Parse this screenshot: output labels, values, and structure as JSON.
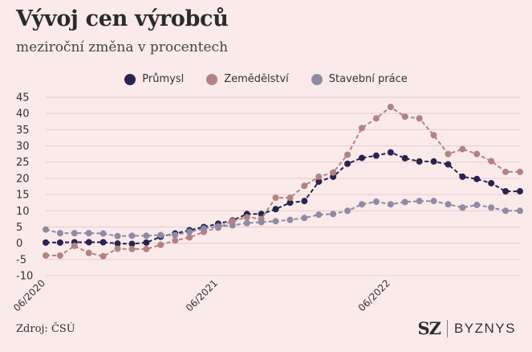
{
  "header": {
    "title": "Vývoj cen výrobců",
    "subtitle": "meziroční změna v procentech"
  },
  "footer": {
    "source": "Zdroj: ČSÚ",
    "brand_mark": "SZ",
    "brand_name": "BYZNYS"
  },
  "chart_data": {
    "type": "line",
    "x": [
      "2020-06",
      "2020-07",
      "2020-08",
      "2020-09",
      "2020-10",
      "2020-11",
      "2020-12",
      "2021-01",
      "2021-02",
      "2021-03",
      "2021-04",
      "2021-05",
      "2021-06",
      "2021-07",
      "2021-08",
      "2021-09",
      "2021-10",
      "2021-11",
      "2021-12",
      "2022-01",
      "2022-02",
      "2022-03",
      "2022-04",
      "2022-05",
      "2022-06",
      "2022-07",
      "2022-08",
      "2022-09",
      "2022-10",
      "2022-11",
      "2022-12",
      "2023-01",
      "2023-02",
      "2023-03"
    ],
    "x_tick_labels": [
      {
        "x": "2020-06",
        "label": "06/2020"
      },
      {
        "x": "2021-06",
        "label": "06/2021"
      },
      {
        "x": "2022-06",
        "label": "06/2022"
      }
    ],
    "y_ticks": [
      45,
      40,
      35,
      30,
      25,
      20,
      15,
      10,
      5,
      0,
      -5,
      -10
    ],
    "ylim": [
      -10,
      45
    ],
    "grid": true,
    "legend_position": "top-center",
    "series": [
      {
        "name": "Průmysl",
        "color": "#28244f",
        "values": [
          0.2,
          0.2,
          0.3,
          0.3,
          0.3,
          -0.1,
          -0.2,
          0.2,
          2,
          3,
          4,
          5,
          6,
          7,
          9,
          9,
          10.5,
          12.5,
          13,
          19,
          20.5,
          24.5,
          26.3,
          27,
          28,
          26.2,
          25.2,
          25.2,
          24.3,
          20.5,
          19.8,
          18.5,
          16,
          16
        ]
      },
      {
        "name": "Zemědělství",
        "color": "#b48282",
        "values": [
          -3.8,
          -3.8,
          -0.8,
          -3,
          -4,
          -1.7,
          -1.8,
          -1.8,
          -0.5,
          0.8,
          1.8,
          3.5,
          4.8,
          6.8,
          8,
          7.5,
          14,
          14,
          17.7,
          20.5,
          21.8,
          27.3,
          35.5,
          38.5,
          42,
          39,
          38.5,
          33.3,
          27.5,
          29,
          27.5,
          25.3,
          22,
          22
        ]
      },
      {
        "name": "Stavební práce",
        "color": "#8e8ba5",
        "values": [
          4.2,
          3.1,
          3.1,
          3.1,
          3,
          2.2,
          2.3,
          2.3,
          2.5,
          2.5,
          3.5,
          4.5,
          5.2,
          5.5,
          6.2,
          6.5,
          6.8,
          7.2,
          7.8,
          8.8,
          9,
          10,
          12,
          12.8,
          12,
          12.7,
          13,
          13,
          12,
          11,
          11.8,
          11,
          10,
          10
        ]
      }
    ]
  }
}
